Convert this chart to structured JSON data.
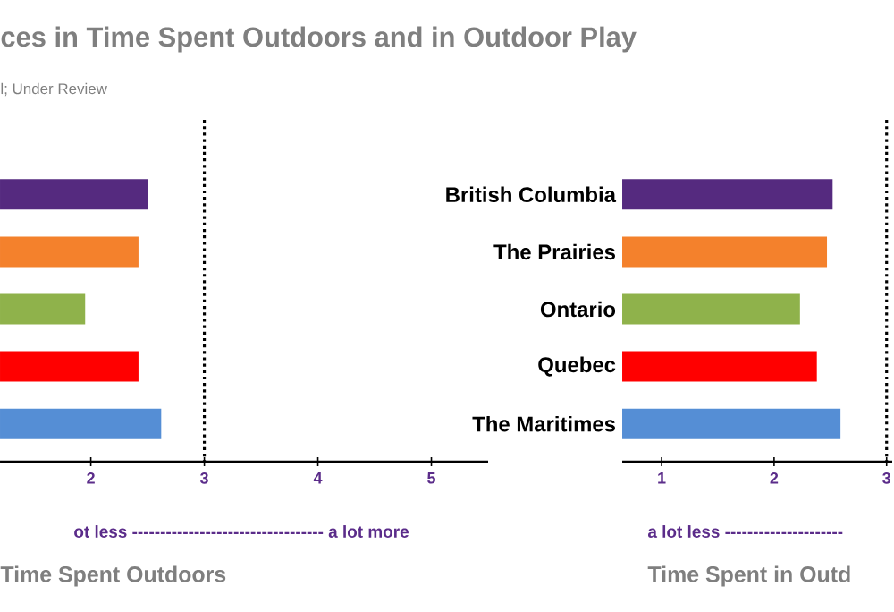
{
  "chart_data": [
    {
      "type": "bar",
      "orientation": "horizontal",
      "title": "ces in Time Spent Outdoors and in Outdoor Play",
      "subtitle": "l; Under Review",
      "xlabel": "Time Spent Outdoors",
      "categories": [
        null,
        null,
        null,
        null,
        null
      ],
      "values": [
        2.5,
        2.42,
        1.95,
        2.42,
        2.62
      ],
      "colors": [
        "#552a7f",
        "#f4812c",
        "#8fb24b",
        "#ff0000",
        "#558ed5"
      ],
      "xlim": [
        1.2,
        5.5
      ],
      "xticks": [
        2,
        3,
        4,
        5
      ],
      "ref_lines": [
        {
          "axis": "x",
          "value": 3,
          "line_style": "dotted"
        }
      ],
      "annotations": [
        "ot less ---------------------------------- a lot more"
      ]
    },
    {
      "type": "bar",
      "orientation": "horizontal",
      "xlabel": "Time Spent in Outd",
      "categories": [
        "British Columbia",
        "The Prairies",
        "Ontario",
        "Quebec",
        "The Maritimes"
      ],
      "values": [
        2.52,
        2.47,
        2.23,
        2.38,
        2.59
      ],
      "colors": [
        "#552a7f",
        "#f4812c",
        "#8fb24b",
        "#ff0000",
        "#558ed5"
      ],
      "xlim": [
        0.65,
        3.05
      ],
      "xticks": [
        1,
        2,
        3
      ],
      "ref_lines": [
        {
          "axis": "x",
          "value": 3,
          "line_style": "dotted"
        }
      ],
      "annotations": [
        "a lot less ---------------------"
      ]
    }
  ]
}
